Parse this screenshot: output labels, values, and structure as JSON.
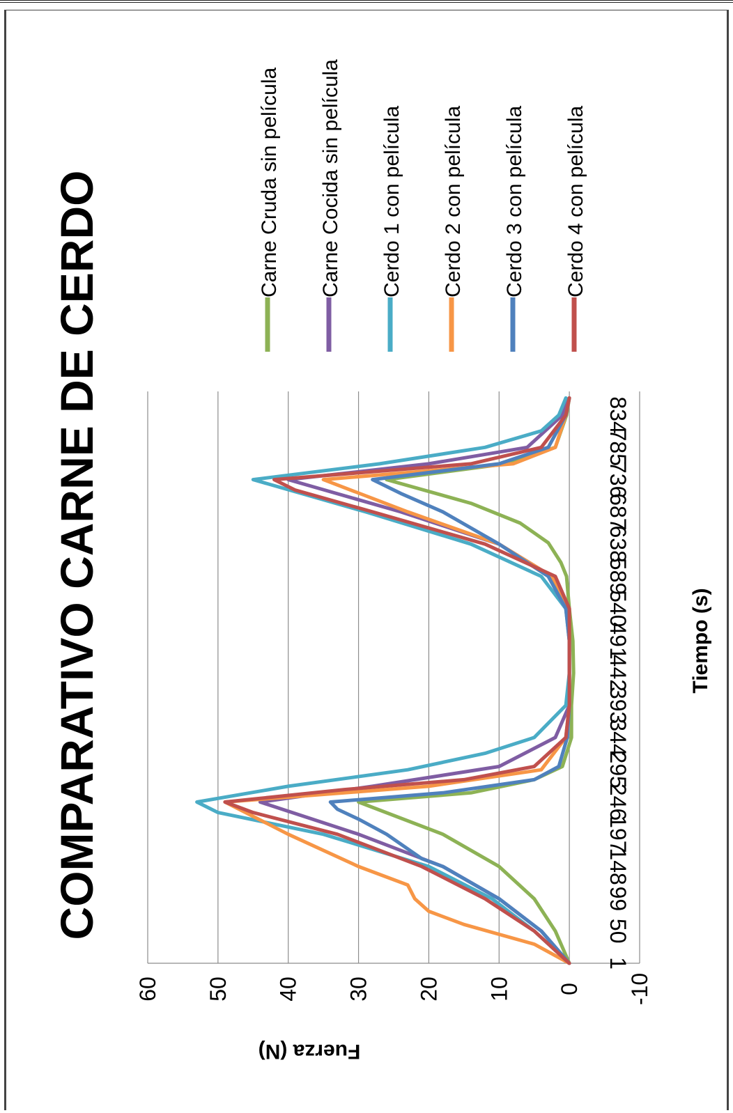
{
  "chart_data": {
    "type": "line",
    "title": "COMPARATIVO CARNE DE CERDO",
    "xlabel": "Tiempo (s)",
    "ylabel": "Fuerza (N)",
    "ylim": [
      -10,
      60
    ],
    "xlim": [
      1,
      870
    ],
    "y_ticks": [
      "-10",
      "0",
      "10",
      "20",
      "30",
      "40",
      "50",
      "60"
    ],
    "x_ticks": [
      "1",
      "50",
      "99",
      "148",
      "197",
      "246",
      "295",
      "344",
      "393",
      "442",
      "491",
      "540",
      "589",
      "638",
      "687",
      "736",
      "785",
      "834"
    ],
    "grid": true,
    "legend_position": "right",
    "series": [
      {
        "name": "Carne Cruda sin película",
        "color": "#8DB255",
        "x": [
          1,
          50,
          99,
          148,
          197,
          246,
          260,
          280,
          300,
          344,
          393,
          442,
          491,
          540,
          589,
          610,
          640,
          670,
          700,
          736,
          760,
          785,
          834,
          860
        ],
        "y": [
          0,
          2,
          5,
          10,
          18,
          30,
          14,
          5,
          1,
          -0.3,
          -0.3,
          -0.6,
          -0.5,
          0,
          0.4,
          1.2,
          3,
          7,
          14,
          26,
          9,
          2,
          0.4,
          0
        ]
      },
      {
        "name": "Carne Cocida sin película",
        "color": "#7F5DA3",
        "x": [
          1,
          50,
          99,
          148,
          197,
          246,
          270,
          300,
          344,
          393,
          442,
          491,
          540,
          589,
          638,
          687,
          736,
          760,
          785,
          834,
          860
        ],
        "y": [
          0,
          4,
          10,
          18,
          30,
          44,
          28,
          10,
          2,
          0,
          0,
          0,
          0.3,
          2.5,
          10,
          24,
          40,
          20,
          6,
          1,
          0
        ]
      },
      {
        "name": "Cerdo 1 con película",
        "color": "#4AACC6",
        "x": [
          1,
          50,
          99,
          148,
          197,
          230,
          246,
          270,
          295,
          320,
          344,
          393,
          442,
          491,
          540,
          589,
          638,
          687,
          736,
          760,
          785,
          810,
          834,
          860
        ],
        "y": [
          0,
          5,
          11,
          20,
          35,
          50,
          53,
          40,
          23,
          12,
          5,
          0.5,
          0,
          0,
          0.5,
          4,
          14,
          29,
          45,
          27,
          12,
          4,
          1.5,
          0.5
        ]
      },
      {
        "name": "Cerdo 2 con película",
        "color": "#F79646",
        "x": [
          1,
          30,
          60,
          80,
          99,
          120,
          148,
          197,
          246,
          270,
          295,
          344,
          393,
          442,
          491,
          540,
          589,
          638,
          687,
          736,
          760,
          785,
          834,
          860
        ],
        "y": [
          0,
          5,
          15,
          20,
          22,
          23,
          30,
          40,
          49,
          20,
          4,
          0.5,
          0,
          0,
          0,
          0,
          2.5,
          10,
          23,
          35,
          8,
          2,
          0.5,
          0
        ]
      },
      {
        "name": "Cerdo 3 con película",
        "color": "#4F81BD",
        "x": [
          1,
          50,
          99,
          148,
          160,
          197,
          220,
          235,
          246,
          260,
          280,
          300,
          344,
          393,
          442,
          491,
          540,
          589,
          638,
          687,
          715,
          736,
          760,
          785,
          834,
          860
        ],
        "y": [
          0,
          4,
          10,
          18,
          21,
          26,
          30,
          33,
          34,
          18,
          5,
          1.5,
          0.3,
          0,
          0,
          0,
          0.5,
          3,
          10,
          18,
          24,
          28,
          10,
          3,
          0.5,
          0
        ]
      },
      {
        "name": "Cerdo 4 con película",
        "color": "#C0504D",
        "x": [
          1,
          50,
          99,
          148,
          197,
          230,
          246,
          265,
          280,
          300,
          344,
          393,
          442,
          491,
          540,
          589,
          638,
          687,
          720,
          736,
          760,
          785,
          834,
          860
        ],
        "y": [
          0,
          5,
          12,
          21,
          33,
          45,
          49,
          32,
          15,
          5,
          0.5,
          0,
          0,
          0,
          0,
          2,
          12,
          28,
          39,
          42,
          14,
          4,
          0.5,
          0
        ]
      }
    ]
  }
}
